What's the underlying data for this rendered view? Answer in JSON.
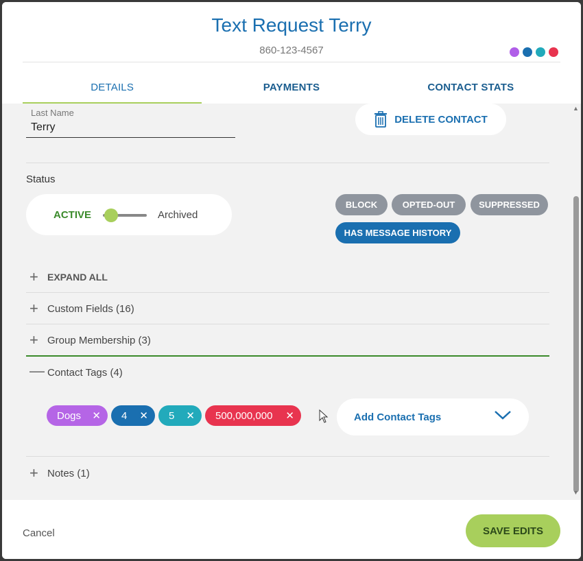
{
  "header": {
    "title": "Text Request Terry",
    "phone": "860-123-4567",
    "color_dots": [
      "#b05ee8",
      "#1a6fb0",
      "#22aabb",
      "#e8344f"
    ]
  },
  "tabs": [
    {
      "label": "DETAILS",
      "active": true
    },
    {
      "label": "PAYMENTS",
      "active": false
    },
    {
      "label": "CONTACT STATS",
      "active": false
    }
  ],
  "fields": {
    "last_name_label": "Last Name",
    "last_name_value": "Terry"
  },
  "delete_contact_label": "DELETE CONTACT",
  "status": {
    "label": "Status",
    "active_label": "ACTIVE",
    "archived_label": "Archived"
  },
  "badges": {
    "block": "BLOCK",
    "opted_out": "OPTED-OUT",
    "suppressed": "SUPPRESSED",
    "has_message_history": "HAS MESSAGE HISTORY"
  },
  "accordion": {
    "expand_all": "EXPAND ALL",
    "custom_fields": "Custom Fields (16)",
    "group_membership": "Group Membership (3)",
    "contact_tags": "Contact Tags (4)",
    "notes": "Notes (1)"
  },
  "tags": [
    {
      "label": "Dogs",
      "color": "#b565e6"
    },
    {
      "label": "4",
      "color": "#1a6fb0"
    },
    {
      "label": "5",
      "color": "#22aabb"
    },
    {
      "label": "500,000,000",
      "color": "#e8344f"
    }
  ],
  "add_contact_tags_label": "Add Contact Tags",
  "footer": {
    "cancel_label": "Cancel",
    "save_label": "SAVE EDITS"
  }
}
